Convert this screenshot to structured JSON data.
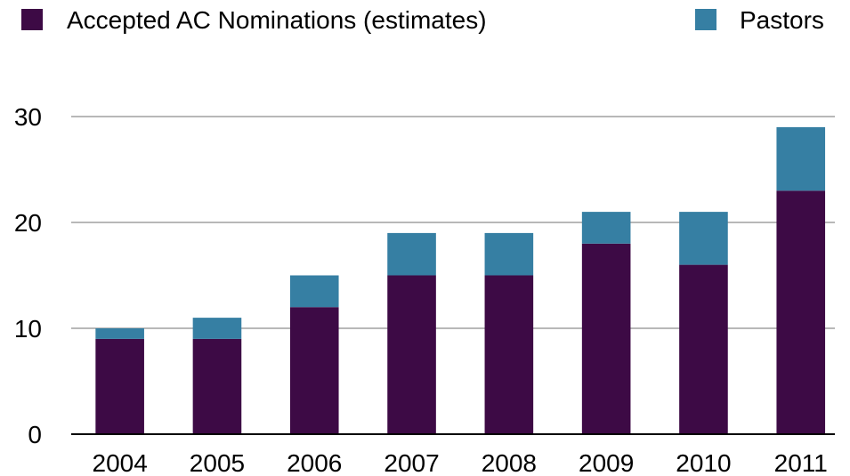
{
  "chart_data": {
    "type": "bar",
    "stacked": true,
    "categories": [
      "2004",
      "2005",
      "2006",
      "2007",
      "2008",
      "2009",
      "2010",
      "2011"
    ],
    "series": [
      {
        "name": "Accepted AC Nominations (estimates)",
        "color": "#3d0a45",
        "values": [
          9,
          9,
          12,
          15,
          15,
          18,
          16,
          23
        ]
      },
      {
        "name": "Pastors",
        "color": "#367fa3",
        "values": [
          1,
          2,
          3,
          4,
          4,
          3,
          5,
          6
        ]
      }
    ],
    "ylim": [
      0,
      30
    ],
    "yticks": [
      0,
      10,
      20,
      30
    ],
    "grid": true,
    "legend_position": "top"
  }
}
